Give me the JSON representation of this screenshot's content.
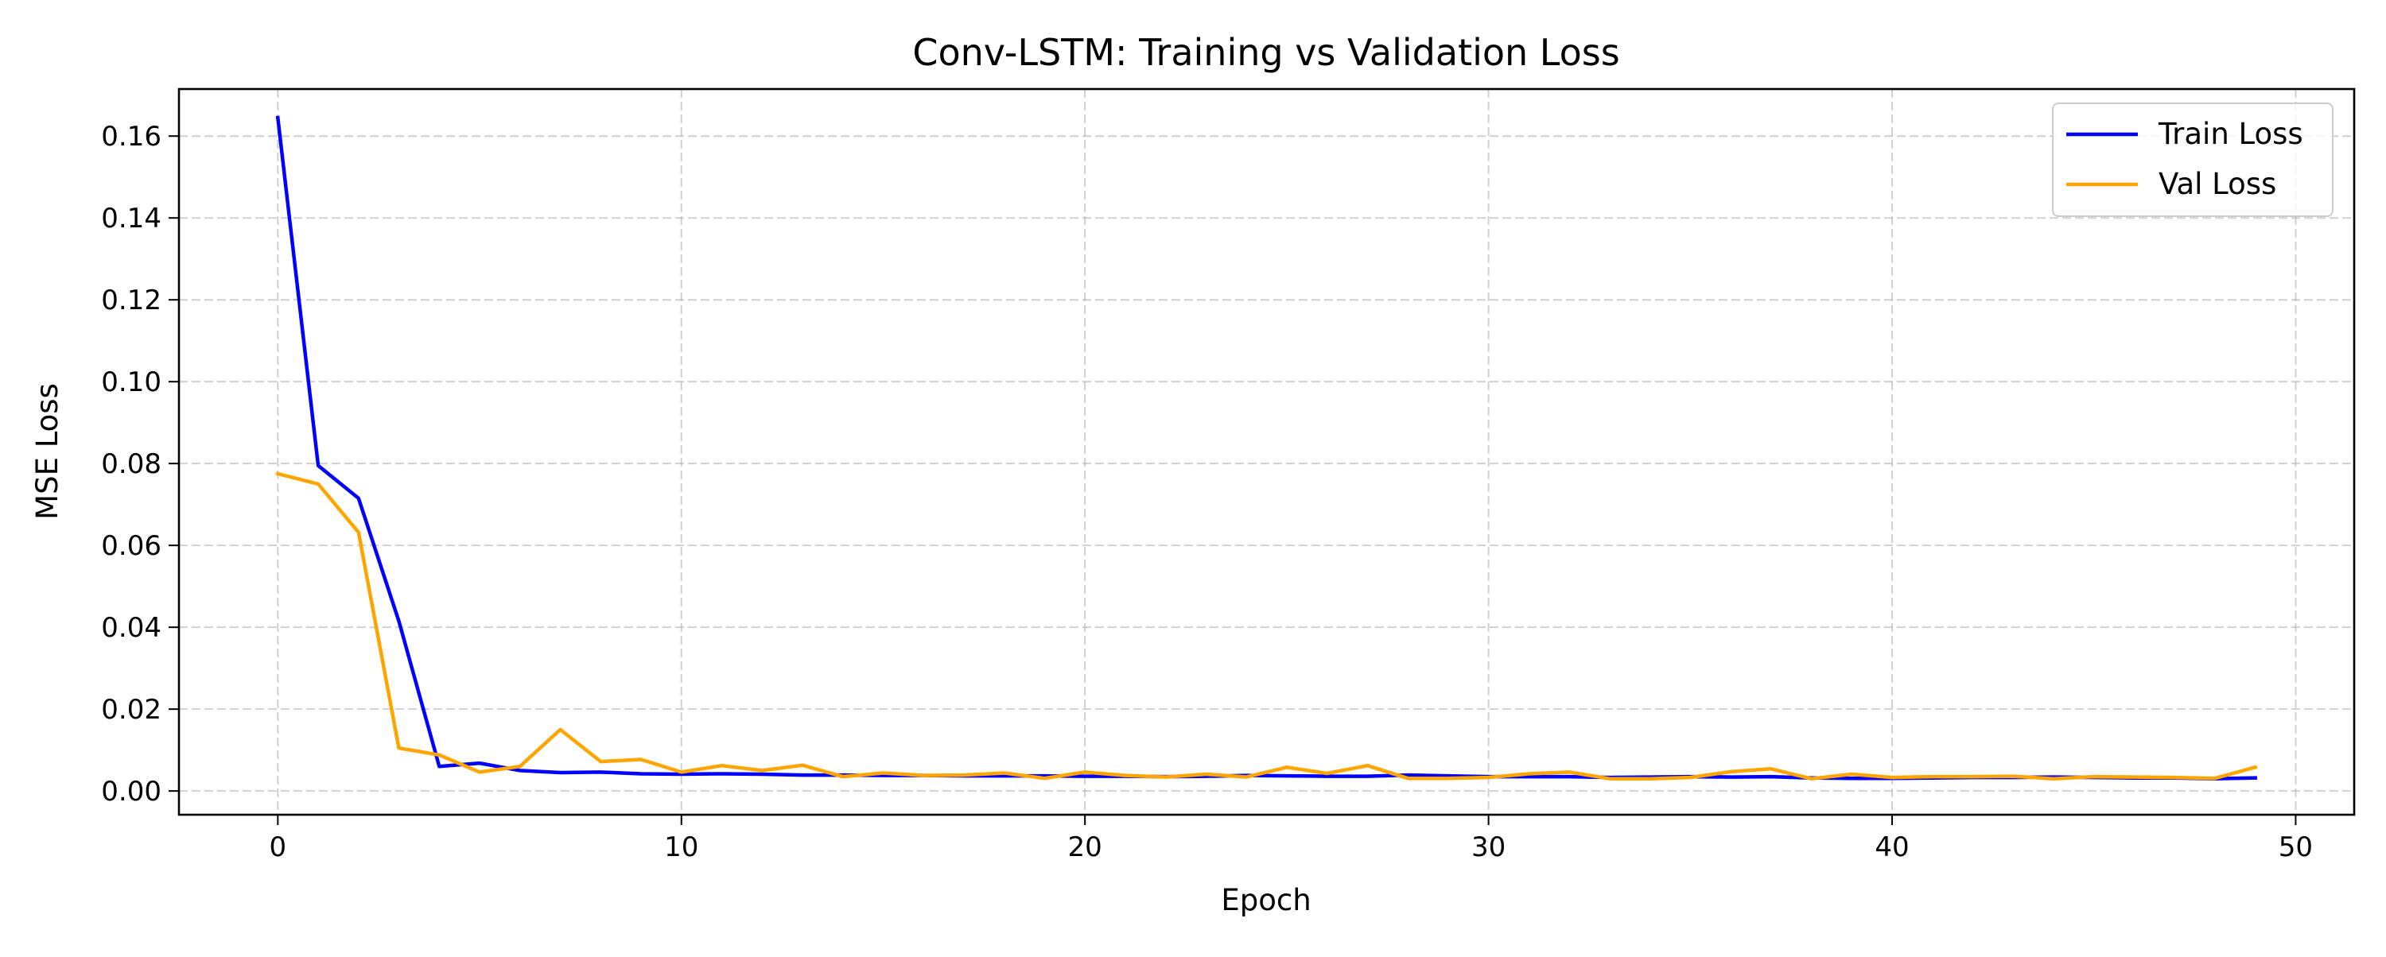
{
  "chart_data": {
    "type": "line",
    "title": "Conv-LSTM: Training vs Validation Loss",
    "xlabel": "Epoch",
    "ylabel": "MSE Loss",
    "xlim": [
      -2.45,
      51.45
    ],
    "ylim": [
      -0.0058,
      0.1715
    ],
    "xticks": [
      0,
      10,
      20,
      30,
      40,
      50
    ],
    "xtick_labels": [
      "0",
      "10",
      "20",
      "30",
      "40",
      "50"
    ],
    "yticks": [
      0.0,
      0.02,
      0.04,
      0.06,
      0.08,
      0.1,
      0.12,
      0.14,
      0.16
    ],
    "ytick_labels": [
      "0.00",
      "0.02",
      "0.04",
      "0.06",
      "0.08",
      "0.10",
      "0.12",
      "0.14",
      "0.16"
    ],
    "grid": true,
    "grid_style": "dashed",
    "legend_position": "upper right",
    "x": [
      0,
      1,
      2,
      3,
      4,
      5,
      6,
      7,
      8,
      9,
      10,
      11,
      12,
      13,
      14,
      15,
      16,
      17,
      18,
      19,
      20,
      21,
      22,
      23,
      24,
      25,
      26,
      27,
      28,
      29,
      30,
      31,
      32,
      33,
      34,
      35,
      36,
      37,
      38,
      39,
      40,
      41,
      42,
      43,
      44,
      45,
      46,
      47,
      48,
      49
    ],
    "series": [
      {
        "name": "Train Loss",
        "color": "#0000ff",
        "values": [
          0.1645,
          0.0795,
          0.0715,
          0.0415,
          0.006,
          0.0068,
          0.005,
          0.0045,
          0.0046,
          0.0042,
          0.0041,
          0.0042,
          0.0041,
          0.0039,
          0.0039,
          0.0038,
          0.0038,
          0.0037,
          0.0037,
          0.0037,
          0.0036,
          0.0036,
          0.0035,
          0.0036,
          0.0038,
          0.0037,
          0.0036,
          0.0036,
          0.0039,
          0.0037,
          0.0035,
          0.0035,
          0.0035,
          0.0033,
          0.0034,
          0.0035,
          0.0034,
          0.0035,
          0.0032,
          0.0031,
          0.0031,
          0.0032,
          0.0033,
          0.0033,
          0.0034,
          0.0033,
          0.0032,
          0.0032,
          0.003,
          0.0032
        ]
      },
      {
        "name": "Val Loss",
        "color": "#ffa500",
        "values": [
          0.0775,
          0.075,
          0.0632,
          0.0105,
          0.0088,
          0.0046,
          0.006,
          0.015,
          0.0072,
          0.0077,
          0.0046,
          0.0062,
          0.005,
          0.0063,
          0.0035,
          0.0044,
          0.0038,
          0.0039,
          0.0044,
          0.0031,
          0.0046,
          0.0038,
          0.0034,
          0.0041,
          0.0034,
          0.0058,
          0.0043,
          0.0062,
          0.0031,
          0.0031,
          0.0033,
          0.0042,
          0.0046,
          0.003,
          0.003,
          0.0033,
          0.0047,
          0.0054,
          0.003,
          0.0041,
          0.0033,
          0.0035,
          0.0035,
          0.0036,
          0.003,
          0.0035,
          0.0034,
          0.0033,
          0.0031,
          0.0058
        ]
      }
    ]
  }
}
